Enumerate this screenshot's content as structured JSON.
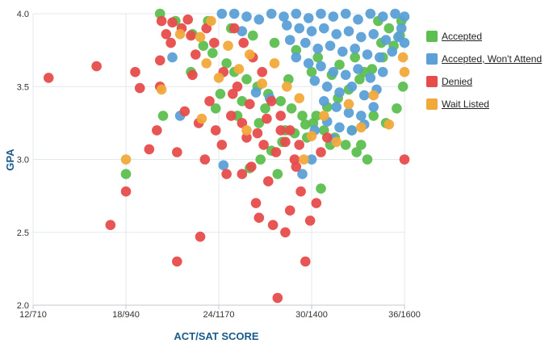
{
  "chart_data": {
    "type": "scatter",
    "title": "",
    "xlabel": "ACT/SAT SCORE",
    "ylabel": "GPA",
    "xlim": [
      12,
      36
    ],
    "ylim": [
      2.0,
      4.0
    ],
    "x_ticks": [
      {
        "value": 12,
        "label": "12/710"
      },
      {
        "value": 18,
        "label": "18/940"
      },
      {
        "value": 24,
        "label": "24/1170"
      },
      {
        "value": 30,
        "label": "30/1400"
      },
      {
        "value": 36,
        "label": "36/1600"
      }
    ],
    "y_ticks": [
      {
        "value": 2.0,
        "label": "2.0"
      },
      {
        "value": 2.5,
        "label": "2.5"
      },
      {
        "value": 3.0,
        "label": "3.0"
      },
      {
        "value": 3.5,
        "label": "3.5"
      },
      {
        "value": 4.0,
        "label": "4.0"
      }
    ],
    "grid": "on",
    "legend_position": "right",
    "series": [
      {
        "name": "Accepted",
        "color": "#5cbf4f",
        "points": [
          [
            20.2,
            4.0
          ],
          [
            21.2,
            3.95
          ],
          [
            22.3,
            3.86
          ],
          [
            23.0,
            3.78
          ],
          [
            23.6,
            3.73
          ],
          [
            24.5,
            3.66
          ],
          [
            25.0,
            3.6
          ],
          [
            25.8,
            3.55
          ],
          [
            26.5,
            3.5
          ],
          [
            27.2,
            3.45
          ],
          [
            28.0,
            3.4
          ],
          [
            28.7,
            3.35
          ],
          [
            29.4,
            3.3
          ],
          [
            30.1,
            3.25
          ],
          [
            30.8,
            3.2
          ],
          [
            31.5,
            3.15
          ],
          [
            32.2,
            3.1
          ],
          [
            32.9,
            3.05
          ],
          [
            33.6,
            3.0
          ],
          [
            34.3,
            3.95
          ],
          [
            35.0,
            3.9
          ],
          [
            35.7,
            3.85
          ],
          [
            35.3,
            3.78
          ],
          [
            34.6,
            3.7
          ],
          [
            33.9,
            3.62
          ],
          [
            33.1,
            3.55
          ],
          [
            32.4,
            3.48
          ],
          [
            31.7,
            3.42
          ],
          [
            31.0,
            3.36
          ],
          [
            30.3,
            3.3
          ],
          [
            29.6,
            3.24
          ],
          [
            28.9,
            3.18
          ],
          [
            28.1,
            3.12
          ],
          [
            27.4,
            3.06
          ],
          [
            26.7,
            3.0
          ],
          [
            26.0,
            2.94
          ],
          [
            27.8,
            2.9
          ],
          [
            30.6,
            2.8
          ],
          [
            33.2,
            3.1
          ],
          [
            34.8,
            3.25
          ],
          [
            35.5,
            3.35
          ],
          [
            35.9,
            3.5
          ],
          [
            23.3,
            3.95
          ],
          [
            24.8,
            3.9
          ],
          [
            26.2,
            3.85
          ],
          [
            27.6,
            3.8
          ],
          [
            29.0,
            3.75
          ],
          [
            30.4,
            3.7
          ],
          [
            31.8,
            3.65
          ],
          [
            33.4,
            3.6
          ],
          [
            20.4,
            3.3
          ],
          [
            22.2,
            3.6
          ],
          [
            23.8,
            3.35
          ],
          [
            25.2,
            3.3
          ],
          [
            26.6,
            3.25
          ],
          [
            28.3,
            3.2
          ],
          [
            29.7,
            3.15
          ],
          [
            31.2,
            3.1
          ],
          [
            32.6,
            3.2
          ],
          [
            34.0,
            3.3
          ],
          [
            18.0,
            2.9
          ],
          [
            24.1,
            3.45
          ],
          [
            25.5,
            3.4
          ],
          [
            27.0,
            3.35
          ],
          [
            28.5,
            3.55
          ],
          [
            30.0,
            3.6
          ],
          [
            31.3,
            3.58
          ],
          [
            32.8,
            3.7
          ],
          [
            34.5,
            3.8
          ],
          [
            35.8,
            3.95
          ]
        ]
      },
      {
        "name": "Accepted, Won't Attend",
        "color": "#5ba0d6",
        "points": [
          [
            24.2,
            4.0
          ],
          [
            25.0,
            4.0
          ],
          [
            25.8,
            3.98
          ],
          [
            26.6,
            3.96
          ],
          [
            27.4,
            4.0
          ],
          [
            28.2,
            3.98
          ],
          [
            29.0,
            4.0
          ],
          [
            29.8,
            3.97
          ],
          [
            30.6,
            4.0
          ],
          [
            31.4,
            3.98
          ],
          [
            32.2,
            4.0
          ],
          [
            33.0,
            3.96
          ],
          [
            33.8,
            4.0
          ],
          [
            34.6,
            3.98
          ],
          [
            35.4,
            4.0
          ],
          [
            36.0,
            3.98
          ],
          [
            28.4,
            3.92
          ],
          [
            29.2,
            3.9
          ],
          [
            30.0,
            3.88
          ],
          [
            30.8,
            3.9
          ],
          [
            31.6,
            3.86
          ],
          [
            32.4,
            3.88
          ],
          [
            33.2,
            3.84
          ],
          [
            34.0,
            3.86
          ],
          [
            34.8,
            3.82
          ],
          [
            35.6,
            3.84
          ],
          [
            29.6,
            3.8
          ],
          [
            30.4,
            3.76
          ],
          [
            31.2,
            3.78
          ],
          [
            32.0,
            3.74
          ],
          [
            32.8,
            3.76
          ],
          [
            33.6,
            3.72
          ],
          [
            34.4,
            3.7
          ],
          [
            35.2,
            3.74
          ],
          [
            29.0,
            3.7
          ],
          [
            29.8,
            3.66
          ],
          [
            30.6,
            3.64
          ],
          [
            31.4,
            3.6
          ],
          [
            32.2,
            3.58
          ],
          [
            33.0,
            3.62
          ],
          [
            33.8,
            3.56
          ],
          [
            34.6,
            3.6
          ],
          [
            30.2,
            3.54
          ],
          [
            31.0,
            3.5
          ],
          [
            31.8,
            3.46
          ],
          [
            32.6,
            3.5
          ],
          [
            33.4,
            3.44
          ],
          [
            34.2,
            3.48
          ],
          [
            30.8,
            3.4
          ],
          [
            31.6,
            3.36
          ],
          [
            32.4,
            3.32
          ],
          [
            33.2,
            3.3
          ],
          [
            34.0,
            3.36
          ],
          [
            31.0,
            3.26
          ],
          [
            31.8,
            3.22
          ],
          [
            32.6,
            3.2
          ],
          [
            33.4,
            3.24
          ],
          [
            30.2,
            3.2
          ],
          [
            31.4,
            3.14
          ],
          [
            21.0,
            3.7
          ],
          [
            21.5,
            3.3
          ],
          [
            24.3,
            2.96
          ],
          [
            26.4,
            3.46
          ],
          [
            27.3,
            3.42
          ],
          [
            28.6,
            3.82
          ],
          [
            29.4,
            2.9
          ],
          [
            35.8,
            3.9
          ],
          [
            36.0,
            3.8
          ],
          [
            30.0,
            3.0
          ],
          [
            25.5,
            3.88
          ]
        ]
      },
      {
        "name": "Denied",
        "color": "#e74c4c",
        "points": [
          [
            13.0,
            3.56
          ],
          [
            16.1,
            3.64
          ],
          [
            17.0,
            2.55
          ],
          [
            18.0,
            2.78
          ],
          [
            18.6,
            3.6
          ],
          [
            18.9,
            3.49
          ],
          [
            19.5,
            3.07
          ],
          [
            20.3,
            3.95
          ],
          [
            20.6,
            3.86
          ],
          [
            20.9,
            3.8
          ],
          [
            20.2,
            3.68
          ],
          [
            20.2,
            3.5
          ],
          [
            21.3,
            3.05
          ],
          [
            21.8,
            3.33
          ],
          [
            21.3,
            2.3
          ],
          [
            22.0,
            3.96
          ],
          [
            22.5,
            3.72
          ],
          [
            22.3,
            3.58
          ],
          [
            22.7,
            3.25
          ],
          [
            22.8,
            2.47
          ],
          [
            23.1,
            3.0
          ],
          [
            23.4,
            3.4
          ],
          [
            23.8,
            3.2
          ],
          [
            24.2,
            3.1
          ],
          [
            24.5,
            2.9
          ],
          [
            24.8,
            3.3
          ],
          [
            25.2,
            3.5
          ],
          [
            25.5,
            2.9
          ],
          [
            25.8,
            3.15
          ],
          [
            26.1,
            2.95
          ],
          [
            26.4,
            2.7
          ],
          [
            26.6,
            2.6
          ],
          [
            26.9,
            3.1
          ],
          [
            27.2,
            2.85
          ],
          [
            27.5,
            2.55
          ],
          [
            27.8,
            2.05
          ],
          [
            28.0,
            3.2
          ],
          [
            28.3,
            2.5
          ],
          [
            28.6,
            2.65
          ],
          [
            29.0,
            2.95
          ],
          [
            29.3,
            2.78
          ],
          [
            29.6,
            2.3
          ],
          [
            29.9,
            2.58
          ],
          [
            30.3,
            2.7
          ],
          [
            30.6,
            3.05
          ],
          [
            31.0,
            3.15
          ],
          [
            25.0,
            3.9
          ],
          [
            25.6,
            3.8
          ],
          [
            26.2,
            3.7
          ],
          [
            26.8,
            3.6
          ],
          [
            27.4,
            3.4
          ],
          [
            28.0,
            3.3
          ],
          [
            28.6,
            3.2
          ],
          [
            29.2,
            3.1
          ],
          [
            23.2,
            3.9
          ],
          [
            23.7,
            3.8
          ],
          [
            24.3,
            3.6
          ],
          [
            24.9,
            3.45
          ],
          [
            25.5,
            3.25
          ],
          [
            26.0,
            3.38
          ],
          [
            26.5,
            3.18
          ],
          [
            27.1,
            3.28
          ],
          [
            27.7,
            3.05
          ],
          [
            28.3,
            3.12
          ],
          [
            28.9,
            3.0
          ],
          [
            21.0,
            3.94
          ],
          [
            21.6,
            3.9
          ],
          [
            22.2,
            3.85
          ],
          [
            36.0,
            3.0
          ],
          [
            20.0,
            3.2
          ]
        ]
      },
      {
        "name": "Wait Listed",
        "color": "#f2a93b",
        "points": [
          [
            18.0,
            3.0
          ],
          [
            20.3,
            3.48
          ],
          [
            22.9,
            3.28
          ],
          [
            22.8,
            3.84
          ],
          [
            23.2,
            3.66
          ],
          [
            24.0,
            3.56
          ],
          [
            24.6,
            3.78
          ],
          [
            25.3,
            3.62
          ],
          [
            26.0,
            3.72
          ],
          [
            26.8,
            3.52
          ],
          [
            27.6,
            3.66
          ],
          [
            28.4,
            3.5
          ],
          [
            29.2,
            3.42
          ],
          [
            30.0,
            3.16
          ],
          [
            30.8,
            3.3
          ],
          [
            31.6,
            3.12
          ],
          [
            32.4,
            3.38
          ],
          [
            33.2,
            3.22
          ],
          [
            34.0,
            3.44
          ],
          [
            35.0,
            3.24
          ],
          [
            35.9,
            3.7
          ],
          [
            36.0,
            3.6
          ],
          [
            29.5,
            3.0
          ],
          [
            25.8,
            3.2
          ],
          [
            23.5,
            3.95
          ],
          [
            21.5,
            3.86
          ]
        ]
      }
    ]
  }
}
